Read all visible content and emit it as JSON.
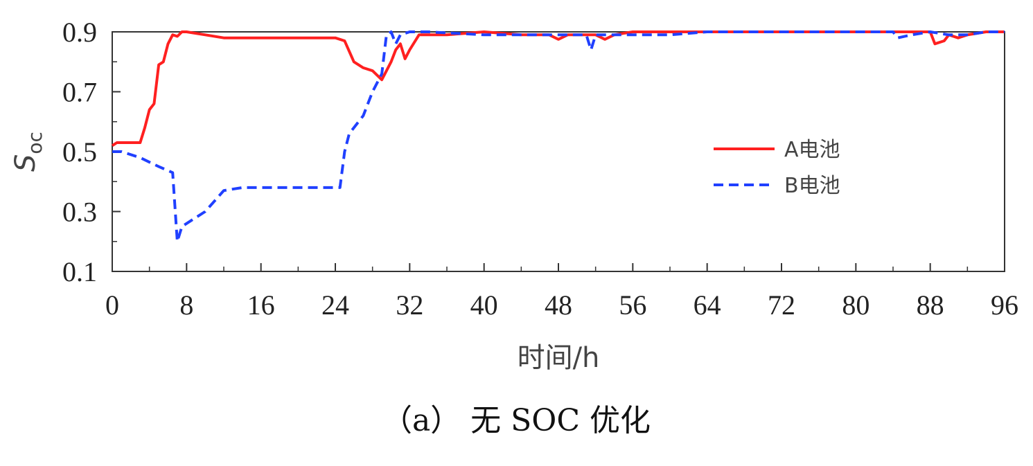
{
  "caption": "（a） 无 SOC 优化",
  "chart_data": {
    "type": "line",
    "xlabel": "时间/h",
    "ylabel_main": "S",
    "ylabel_sub": "oc",
    "xlim": [
      0,
      96
    ],
    "ylim": [
      0.1,
      0.9
    ],
    "xticks": [
      0,
      8,
      16,
      24,
      32,
      40,
      48,
      56,
      64,
      72,
      80,
      88,
      96
    ],
    "yticks": [
      0.1,
      0.3,
      0.5,
      0.7,
      0.9
    ],
    "ytick_labels": [
      "0.1",
      "0.3",
      "0.5",
      "0.7",
      "0.9"
    ],
    "grid": false,
    "legend_position": "center-right",
    "series": [
      {
        "name": "A电池",
        "color": "#ff2020",
        "style": "solid",
        "points": [
          [
            0,
            0.52
          ],
          [
            0.5,
            0.53
          ],
          [
            3,
            0.53
          ],
          [
            3.5,
            0.58
          ],
          [
            4,
            0.64
          ],
          [
            4.5,
            0.66
          ],
          [
            5,
            0.79
          ],
          [
            5.5,
            0.8
          ],
          [
            6,
            0.86
          ],
          [
            6.5,
            0.89
          ],
          [
            7,
            0.885
          ],
          [
            7.5,
            0.9
          ],
          [
            8,
            0.9
          ],
          [
            10,
            0.89
          ],
          [
            12,
            0.88
          ],
          [
            16,
            0.88
          ],
          [
            20,
            0.88
          ],
          [
            24,
            0.88
          ],
          [
            25,
            0.87
          ],
          [
            26,
            0.8
          ],
          [
            27,
            0.78
          ],
          [
            28,
            0.77
          ],
          [
            29,
            0.74
          ],
          [
            30,
            0.8
          ],
          [
            30.5,
            0.84
          ],
          [
            31,
            0.86
          ],
          [
            31.5,
            0.81
          ],
          [
            32,
            0.84
          ],
          [
            33,
            0.89
          ],
          [
            34,
            0.89
          ],
          [
            36,
            0.89
          ],
          [
            40,
            0.9
          ],
          [
            44,
            0.89
          ],
          [
            47,
            0.89
          ],
          [
            48,
            0.875
          ],
          [
            49,
            0.89
          ],
          [
            52,
            0.89
          ],
          [
            53,
            0.875
          ],
          [
            54,
            0.89
          ],
          [
            56,
            0.9
          ],
          [
            64,
            0.9
          ],
          [
            72,
            0.9
          ],
          [
            80,
            0.9
          ],
          [
            88,
            0.9
          ],
          [
            88.5,
            0.86
          ],
          [
            89.5,
            0.87
          ],
          [
            90,
            0.89
          ],
          [
            91,
            0.88
          ],
          [
            92,
            0.89
          ],
          [
            94,
            0.9
          ],
          [
            96,
            0.9
          ]
        ]
      },
      {
        "name": "B电池",
        "color": "#2040ff",
        "style": "dashed",
        "points": [
          [
            0,
            0.5
          ],
          [
            1,
            0.5
          ],
          [
            3,
            0.48
          ],
          [
            5,
            0.45
          ],
          [
            6.5,
            0.43
          ],
          [
            7,
            0.2
          ],
          [
            7.5,
            0.25
          ],
          [
            8,
            0.26
          ],
          [
            10,
            0.3
          ],
          [
            12,
            0.37
          ],
          [
            14,
            0.38
          ],
          [
            18,
            0.38
          ],
          [
            22,
            0.38
          ],
          [
            24.5,
            0.38
          ],
          [
            25,
            0.5
          ],
          [
            25.5,
            0.56
          ],
          [
            27,
            0.62
          ],
          [
            28,
            0.7
          ],
          [
            29,
            0.76
          ],
          [
            29.5,
            0.89
          ],
          [
            30,
            0.9
          ],
          [
            30.5,
            0.86
          ],
          [
            31,
            0.89
          ],
          [
            32,
            0.9
          ],
          [
            34,
            0.9
          ],
          [
            40,
            0.89
          ],
          [
            44,
            0.89
          ],
          [
            48,
            0.89
          ],
          [
            51,
            0.89
          ],
          [
            51.5,
            0.84
          ],
          [
            52,
            0.89
          ],
          [
            56,
            0.89
          ],
          [
            60,
            0.89
          ],
          [
            64,
            0.9
          ],
          [
            72,
            0.9
          ],
          [
            80,
            0.9
          ],
          [
            84,
            0.9
          ],
          [
            84.5,
            0.88
          ],
          [
            86,
            0.89
          ],
          [
            88,
            0.9
          ],
          [
            90,
            0.89
          ],
          [
            92,
            0.89
          ],
          [
            94,
            0.9
          ],
          [
            96,
            0.9
          ]
        ]
      }
    ]
  }
}
